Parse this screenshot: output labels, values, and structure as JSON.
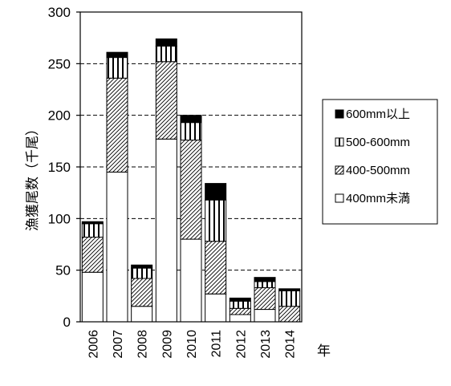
{
  "chart_data": {
    "type": "bar",
    "stacked": true,
    "categories": [
      "2006",
      "2007",
      "2008",
      "2009",
      "2010",
      "2011",
      "2012",
      "2013",
      "2014"
    ],
    "series": [
      {
        "name": "400mm未満",
        "pattern": "white",
        "values": [
          48,
          145,
          15,
          177,
          80,
          27,
          7,
          12,
          0
        ]
      },
      {
        "name": "400-500mm",
        "pattern": "hatched",
        "values": [
          34,
          91,
          27,
          75,
          96,
          51,
          6,
          21,
          15
        ]
      },
      {
        "name": "500-600mm",
        "pattern": "vertical-stripes",
        "values": [
          13,
          20,
          10,
          15,
          17,
          40,
          7,
          6,
          15
        ]
      },
      {
        "name": "600mm以上",
        "pattern": "black",
        "values": [
          2,
          5,
          3,
          7,
          7,
          16,
          3,
          4,
          2
        ]
      }
    ],
    "ylabel": "漁獲尾数（千尾）",
    "xlabel": "年",
    "ylim": [
      0,
      300
    ],
    "yticks": [
      0,
      50,
      100,
      150,
      200,
      250,
      300
    ],
    "grid": "horizontal-dashed",
    "legend_position": "right",
    "legend_order": [
      "600mm以上",
      "500-600mm",
      "400-500mm",
      "400mm未満"
    ]
  }
}
